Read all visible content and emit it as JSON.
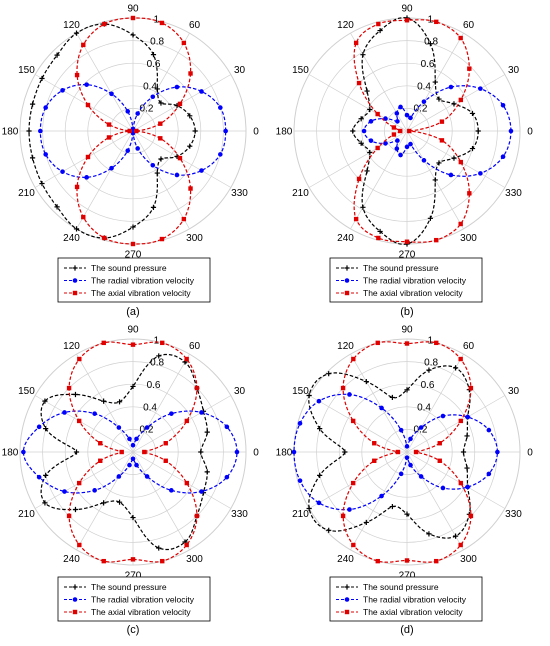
{
  "chart_data": [
    {
      "type": "polar-line",
      "label": "(a)",
      "angle_ticks": [
        "0",
        "30",
        "60",
        "90",
        "120",
        "150",
        "180",
        "210",
        "240",
        "270",
        "300",
        "330"
      ],
      "radial_ticks": [
        "0.2",
        "0.4",
        "0.6",
        "0.8",
        "1"
      ],
      "rlim": [
        0,
        1
      ],
      "legend": [
        "The sound pressure",
        "The radial vibration velocity",
        "The axial vibration velocity"
      ],
      "series": [
        {
          "name": "The sound pressure",
          "color": "#000000",
          "marker": "plus",
          "theta": [
            0,
            15,
            30,
            45,
            60,
            75,
            90,
            105,
            120,
            135,
            150,
            165,
            180,
            195,
            210,
            225,
            240,
            255,
            270,
            285,
            300,
            315,
            330,
            345
          ],
          "r": [
            0.55,
            0.52,
            0.45,
            0.35,
            0.43,
            0.7,
            0.85,
            0.98,
            1.0,
            0.95,
            0.93,
            0.92,
            0.92,
            0.92,
            0.93,
            0.95,
            1.0,
            0.98,
            0.85,
            0.7,
            0.43,
            0.35,
            0.45,
            0.52
          ]
        },
        {
          "name": "The radial vibration velocity",
          "color": "#0000ff",
          "marker": "circle",
          "theta": [
            0,
            15,
            30,
            45,
            60,
            75,
            90,
            105,
            120,
            135,
            150,
            165,
            180,
            195,
            210,
            225,
            240,
            255,
            270,
            285,
            300,
            315,
            330,
            345
          ],
          "r": [
            0.82,
            0.8,
            0.7,
            0.55,
            0.35,
            0.16,
            0.02,
            0.18,
            0.38,
            0.58,
            0.72,
            0.8,
            0.82,
            0.8,
            0.72,
            0.58,
            0.38,
            0.18,
            0.02,
            0.16,
            0.35,
            0.55,
            0.7,
            0.8
          ]
        },
        {
          "name": "The axial vibration velocity",
          "color": "#e00000",
          "marker": "square",
          "theta": [
            0,
            15,
            30,
            45,
            60,
            75,
            90,
            105,
            120,
            135,
            150,
            165,
            180,
            195,
            210,
            225,
            240,
            255,
            270,
            285,
            300,
            315,
            330,
            345
          ],
          "r": [
            0.03,
            0.25,
            0.48,
            0.72,
            0.9,
            0.99,
            1.0,
            0.98,
            0.88,
            0.7,
            0.46,
            0.22,
            0.03,
            0.22,
            0.46,
            0.7,
            0.88,
            0.98,
            1.0,
            0.99,
            0.9,
            0.72,
            0.48,
            0.25
          ]
        }
      ]
    },
    {
      "type": "polar-line",
      "label": "(b)",
      "angle_ticks": [
        "0",
        "30",
        "60",
        "90",
        "120",
        "150",
        "180",
        "210",
        "240",
        "270",
        "300",
        "330"
      ],
      "radial_ticks": [
        "0.2",
        "0.4",
        "0.6",
        "0.8",
        "1"
      ],
      "rlim": [
        0,
        1
      ],
      "legend": [
        "The sound pressure",
        "The radial vibration velocity",
        "The axial vibration velocity"
      ],
      "series": [
        {
          "name": "The sound pressure",
          "color": "#000000",
          "marker": "plus",
          "theta": [
            0,
            15,
            30,
            45,
            60,
            75,
            90,
            105,
            120,
            135,
            150,
            165,
            180,
            195,
            210,
            225,
            240,
            255,
            270,
            285,
            300,
            315,
            330,
            345
          ],
          "r": [
            0.63,
            0.6,
            0.48,
            0.4,
            0.5,
            0.8,
            1.0,
            0.92,
            0.78,
            0.5,
            0.38,
            0.42,
            0.48,
            0.42,
            0.38,
            0.5,
            0.78,
            0.92,
            1.0,
            0.8,
            0.5,
            0.4,
            0.48,
            0.6
          ]
        },
        {
          "name": "The radial vibration velocity",
          "color": "#0000ff",
          "marker": "circle",
          "theta": [
            0,
            15,
            30,
            45,
            60,
            75,
            90,
            105,
            120,
            135,
            150,
            165,
            180,
            195,
            210,
            225,
            240,
            255,
            270,
            285,
            300,
            315,
            330,
            345
          ],
          "r": [
            0.92,
            0.88,
            0.75,
            0.55,
            0.3,
            0.12,
            0.14,
            0.22,
            0.18,
            0.12,
            0.22,
            0.33,
            0.38,
            0.33,
            0.22,
            0.12,
            0.18,
            0.22,
            0.14,
            0.12,
            0.3,
            0.55,
            0.75,
            0.88
          ]
        },
        {
          "name": "The axial vibration velocity",
          "color": "#e00000",
          "marker": "square",
          "theta": [
            0,
            15,
            30,
            45,
            60,
            75,
            90,
            105,
            120,
            135,
            150,
            165,
            180,
            195,
            210,
            225,
            240,
            255,
            270,
            285,
            300,
            315,
            330,
            345
          ],
          "r": [
            0.02,
            0.32,
            0.55,
            0.78,
            0.95,
            1.0,
            0.98,
            0.98,
            0.9,
            0.6,
            0.3,
            0.12,
            0.06,
            0.12,
            0.3,
            0.6,
            0.9,
            0.98,
            0.98,
            1.0,
            0.95,
            0.78,
            0.55,
            0.32
          ]
        }
      ]
    },
    {
      "type": "polar-line",
      "label": "(c)",
      "angle_ticks": [
        "0",
        "30",
        "60",
        "90",
        "120",
        "150",
        "180",
        "210",
        "240",
        "270",
        "300",
        "330"
      ],
      "radial_ticks": [
        "0.2",
        "0.4",
        "0.6",
        "0.8",
        "1"
      ],
      "rlim": [
        0,
        1
      ],
      "legend": [
        "The sound pressure",
        "The radial vibration velocity",
        "The axial vibration velocity"
      ],
      "series": [
        {
          "name": "The sound pressure",
          "color": "#000000",
          "marker": "plus",
          "theta": [
            0,
            15,
            30,
            45,
            60,
            75,
            90,
            105,
            120,
            135,
            150,
            165,
            180,
            195,
            210,
            225,
            240,
            255,
            270,
            285,
            300,
            315,
            330,
            345
          ],
          "r": [
            0.6,
            0.68,
            0.72,
            0.8,
            0.92,
            0.88,
            0.58,
            0.46,
            0.52,
            0.72,
            0.9,
            0.8,
            0.5,
            0.8,
            0.9,
            0.72,
            0.52,
            0.46,
            0.58,
            0.88,
            0.92,
            0.8,
            0.72,
            0.68
          ]
        },
        {
          "name": "The radial vibration velocity",
          "color": "#0000ff",
          "marker": "circle",
          "theta": [
            0,
            15,
            30,
            45,
            60,
            75,
            90,
            105,
            120,
            135,
            150,
            165,
            180,
            195,
            210,
            225,
            240,
            255,
            270,
            285,
            300,
            315,
            330,
            345
          ],
          "r": [
            0.92,
            0.86,
            0.7,
            0.48,
            0.25,
            0.12,
            0.06,
            0.12,
            0.25,
            0.48,
            0.7,
            0.86,
            0.97,
            0.86,
            0.7,
            0.48,
            0.25,
            0.12,
            0.06,
            0.12,
            0.25,
            0.48,
            0.7,
            0.86
          ]
        },
        {
          "name": "The axial vibration velocity",
          "color": "#e00000",
          "marker": "square",
          "theta": [
            0,
            15,
            30,
            45,
            60,
            75,
            90,
            105,
            120,
            135,
            150,
            165,
            180,
            195,
            210,
            225,
            240,
            255,
            270,
            285,
            300,
            315,
            330,
            345
          ],
          "r": [
            0.1,
            0.3,
            0.55,
            0.8,
            0.95,
            1.0,
            0.95,
            1.0,
            0.95,
            0.8,
            0.55,
            0.3,
            0.1,
            0.3,
            0.55,
            0.8,
            0.95,
            1.0,
            0.95,
            1.0,
            0.95,
            0.8,
            0.55,
            0.3
          ]
        }
      ]
    },
    {
      "type": "polar-line",
      "label": "(d)",
      "angle_ticks": [
        "0",
        "30",
        "60",
        "90",
        "120",
        "150",
        "180",
        "210",
        "240",
        "270",
        "300",
        "330"
      ],
      "radial_ticks": [
        "0.2",
        "0.4",
        "0.6",
        "0.8",
        "1"
      ],
      "rlim": [
        0,
        1
      ],
      "legend": [
        "The sound pressure",
        "The radial vibration velocity",
        "The axial vibration velocity"
      ],
      "series": [
        {
          "name": "The sound pressure",
          "color": "#000000",
          "marker": "plus",
          "theta": [
            0,
            15,
            30,
            45,
            60,
            75,
            90,
            105,
            120,
            135,
            150,
            165,
            180,
            195,
            210,
            225,
            240,
            255,
            270,
            285,
            300,
            315,
            330,
            345
          ],
          "r": [
            0.5,
            0.55,
            0.62,
            0.78,
            0.86,
            0.75,
            0.55,
            0.5,
            0.72,
            0.98,
            1.0,
            0.8,
            0.55,
            0.8,
            1.0,
            0.98,
            0.72,
            0.5,
            0.55,
            0.75,
            0.86,
            0.78,
            0.62,
            0.55
          ]
        },
        {
          "name": "The radial vibration velocity",
          "color": "#0000ff",
          "marker": "circle",
          "theta": [
            0,
            15,
            30,
            45,
            60,
            75,
            90,
            105,
            120,
            135,
            150,
            165,
            180,
            195,
            210,
            225,
            240,
            255,
            270,
            285,
            300,
            315,
            330,
            345
          ],
          "r": [
            0.8,
            0.75,
            0.62,
            0.45,
            0.25,
            0.12,
            0.05,
            0.2,
            0.45,
            0.72,
            0.9,
            0.98,
            1.0,
            0.98,
            0.9,
            0.72,
            0.45,
            0.2,
            0.05,
            0.12,
            0.25,
            0.45,
            0.62,
            0.75
          ]
        },
        {
          "name": "The axial vibration velocity",
          "color": "#e00000",
          "marker": "square",
          "theta": [
            0,
            15,
            30,
            45,
            60,
            75,
            90,
            105,
            120,
            135,
            150,
            165,
            180,
            195,
            210,
            225,
            240,
            255,
            270,
            285,
            300,
            315,
            330,
            345
          ],
          "r": [
            0.08,
            0.3,
            0.55,
            0.8,
            0.95,
            1.0,
            0.96,
            1.0,
            0.95,
            0.8,
            0.55,
            0.3,
            0.08,
            0.3,
            0.55,
            0.8,
            0.95,
            1.0,
            0.96,
            1.0,
            0.95,
            0.8,
            0.55,
            0.3
          ]
        }
      ]
    }
  ]
}
